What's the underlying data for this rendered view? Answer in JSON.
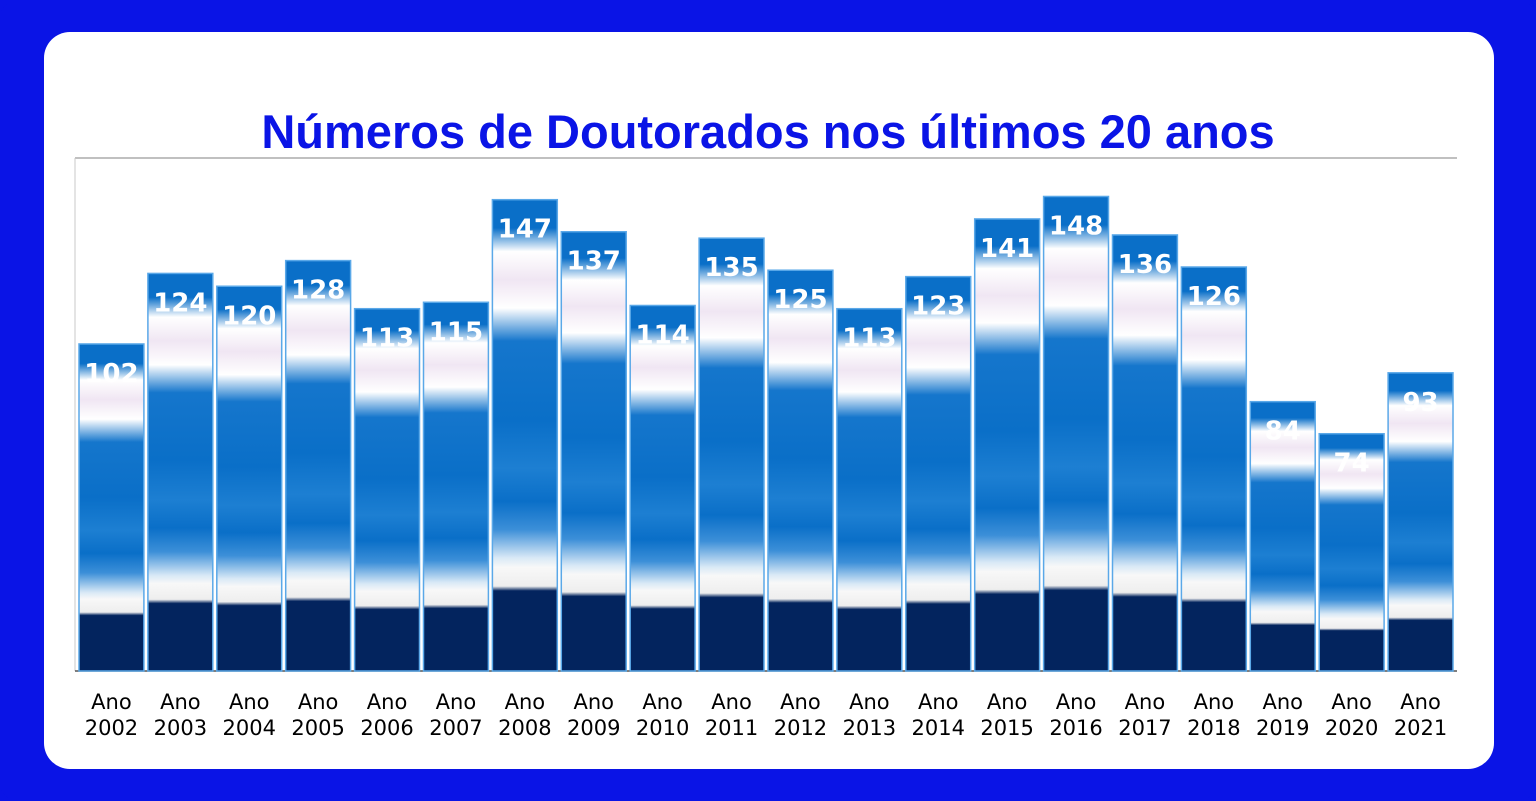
{
  "chart_data": {
    "type": "bar",
    "title": "Números de Doutorados nos últimos 20 anos",
    "xlabel": "",
    "ylabel": "",
    "categories": [
      "Ano 2002",
      "Ano 2003",
      "Ano 2004",
      "Ano 2005",
      "Ano 2006",
      "Ano 2007",
      "Ano 2008",
      "Ano 2009",
      "Ano 2010",
      "Ano 2011",
      "Ano 2012",
      "Ano 2013",
      "Ano 2014",
      "Ano 2015",
      "Ano 2016",
      "Ano 2017",
      "Ano 2018",
      "Ano 2019",
      "Ano 2020",
      "Ano 2021"
    ],
    "category_lines": [
      [
        "Ano",
        "2002"
      ],
      [
        "Ano",
        "2003"
      ],
      [
        "Ano",
        "2004"
      ],
      [
        "Ano",
        "2005"
      ],
      [
        "Ano",
        "2006"
      ],
      [
        "Ano",
        "2007"
      ],
      [
        "Ano",
        "2008"
      ],
      [
        "Ano",
        "2009"
      ],
      [
        "Ano",
        "2010"
      ],
      [
        "Ano",
        "2011"
      ],
      [
        "Ano",
        "2012"
      ],
      [
        "Ano",
        "2013"
      ],
      [
        "Ano",
        "2014"
      ],
      [
        "Ano",
        "2015"
      ],
      [
        "Ano",
        "2016"
      ],
      [
        "Ano",
        "2017"
      ],
      [
        "Ano",
        "2018"
      ],
      [
        "Ano",
        "2019"
      ],
      [
        "Ano",
        "2020"
      ],
      [
        "Ano",
        "2021"
      ]
    ],
    "values": [
      102,
      124,
      120,
      128,
      113,
      115,
      147,
      137,
      114,
      135,
      125,
      113,
      123,
      141,
      148,
      136,
      126,
      84,
      74,
      93
    ],
    "ylim": [
      0,
      160
    ],
    "data_labels": true,
    "grid": false,
    "colors": {
      "frame": "#0a14e6",
      "title": "#0a14e6",
      "bar_dark": "#03245e",
      "bar_mid": "#0a6fc8",
      "bar_light": "#f3eef6",
      "bar_outline": "#5aa8e8"
    }
  }
}
